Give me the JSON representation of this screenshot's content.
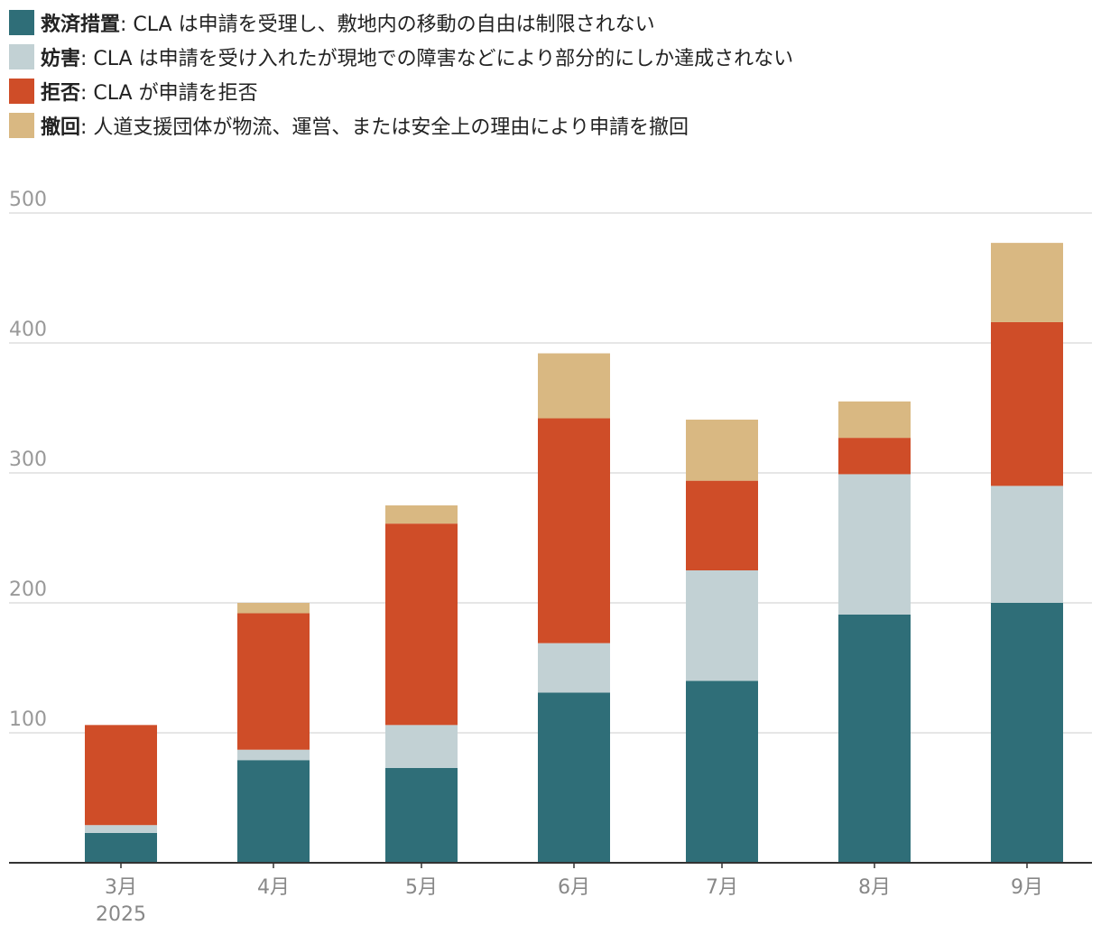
{
  "chart_data": {
    "type": "bar",
    "stacked": true,
    "categories": [
      "3月",
      "4月",
      "5月",
      "6月",
      "7月",
      "8月",
      "9月"
    ],
    "category_sublabels": [
      "2025",
      "",
      "",
      "",
      "",
      "",
      ""
    ],
    "series": [
      {
        "name": "救済措置",
        "description": ": CLA は申請を受理し、敷地内の移動の自由は制限されない",
        "color": "#2f6e78",
        "values": [
          23,
          79,
          73,
          131,
          140,
          191,
          200
        ]
      },
      {
        "name": "妨害",
        "description": ": CLA は申請を受け入れたが現地での障害などにより部分的にしか達成されない",
        "color": "#c2d1d4",
        "values": [
          6,
          8,
          33,
          38,
          85,
          108,
          90
        ]
      },
      {
        "name": "拒否",
        "description": ": CLA が申請を拒否",
        "color": "#cf4d28",
        "values": [
          77,
          105,
          155,
          173,
          69,
          28,
          126
        ]
      },
      {
        "name": "撤回",
        "description": ": 人道支援団体が物流、運営、または安全上の理由により申請を撤回",
        "color": "#d9b882",
        "values": [
          0,
          8,
          14,
          50,
          47,
          28,
          61
        ]
      }
    ],
    "ylim": [
      0,
      500
    ],
    "yticks": [
      100,
      200,
      300,
      400,
      500
    ],
    "grid": true,
    "legend_position": "top-left"
  }
}
